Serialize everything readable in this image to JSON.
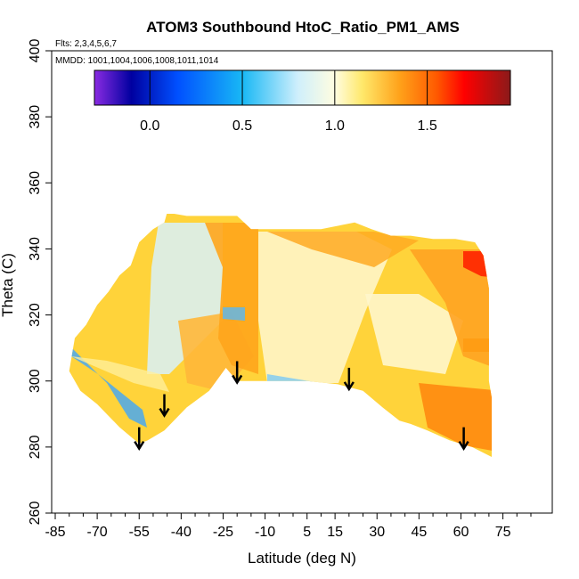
{
  "chart_data": {
    "type": "heatmap",
    "title": "ATOM3 Southbound HtoC_Ratio_PM1_AMS",
    "flights_label": "Flts: 2,3,4,5,6,7",
    "dates_label": "MMDD: 1001,1004,1006,1008,1011,1014",
    "xlabel": "Latitude (deg N)",
    "ylabel": "Theta (C)",
    "xlim": [
      -85,
      85
    ],
    "ylim": [
      260,
      400
    ],
    "x_ticks": [
      -85,
      -70,
      -55,
      -40,
      -25,
      -10,
      5,
      15,
      30,
      45,
      60,
      75
    ],
    "x_tick_labels": [
      "-85",
      "-70",
      "-55",
      "-40",
      "-25",
      "-10",
      "5",
      "15",
      "30",
      "45",
      "60",
      "75"
    ],
    "y_ticks": [
      260,
      280,
      300,
      320,
      340,
      360,
      380,
      400
    ],
    "y_tick_labels": [
      "260",
      "280",
      "300",
      "320",
      "340",
      "360",
      "380",
      "400"
    ],
    "colorbar": {
      "range": [
        -0.3,
        1.95
      ],
      "ticks": [
        0.0,
        0.5,
        1.0,
        1.5
      ],
      "tick_labels": [
        "0.0",
        "0.5",
        "1.0",
        "1.5"
      ],
      "stops": [
        {
          "v": -0.3,
          "c": "#8a2be2"
        },
        {
          "v": -0.1,
          "c": "#0000a0"
        },
        {
          "v": 0.15,
          "c": "#0050ff"
        },
        {
          "v": 0.5,
          "c": "#18b8f5"
        },
        {
          "v": 0.8,
          "c": "#cfeffc"
        },
        {
          "v": 1.0,
          "c": "#fffde0"
        },
        {
          "v": 1.15,
          "c": "#ffe86a"
        },
        {
          "v": 1.35,
          "c": "#ffa21a"
        },
        {
          "v": 1.55,
          "c": "#ff5a00"
        },
        {
          "v": 1.7,
          "c": "#ff0000"
        },
        {
          "v": 1.95,
          "c": "#8b1a1a"
        }
      ]
    },
    "profiles": [
      {
        "lat": -55,
        "theta_min": 281,
        "theta_max": 342
      },
      {
        "lat": -46,
        "theta_min": 285,
        "theta_max": 348
      },
      {
        "lat": -20,
        "theta_min": 300,
        "theta_max": 350
      },
      {
        "lat": 20,
        "theta_min": 298,
        "theta_max": 348
      },
      {
        "lat": 61,
        "theta_min": 280,
        "theta_max": 343
      }
    ],
    "arrow_latitudes": [
      -55,
      -46,
      -20,
      20,
      61
    ],
    "arrow_theta_top": [
      286,
      296,
      306,
      304,
      286
    ]
  }
}
